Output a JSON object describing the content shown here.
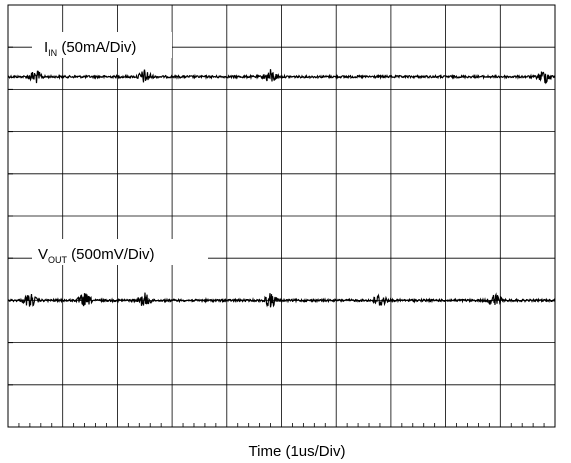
{
  "chart_data": {
    "type": "line",
    "title": "",
    "xlabel": "Time (1us/Div)",
    "ylabel": "",
    "divisions": {
      "x": 10,
      "y": 10
    },
    "grid": true,
    "series": [
      {
        "label_main": "I",
        "label_sub": "IN",
        "label_rest": " (50mA/Div)",
        "level_div": 8.3,
        "burst_positions_div": [
          0.5,
          2.5,
          4.8,
          9.8
        ],
        "color": "#000000"
      },
      {
        "label_main": "V",
        "label_sub": "OUT",
        "label_rest": " (500mV/Div)",
        "level_div": 3.0,
        "burst_positions_div": [
          0.4,
          1.4,
          2.5,
          4.8,
          6.8,
          8.9
        ],
        "color": "#000000"
      }
    ]
  }
}
